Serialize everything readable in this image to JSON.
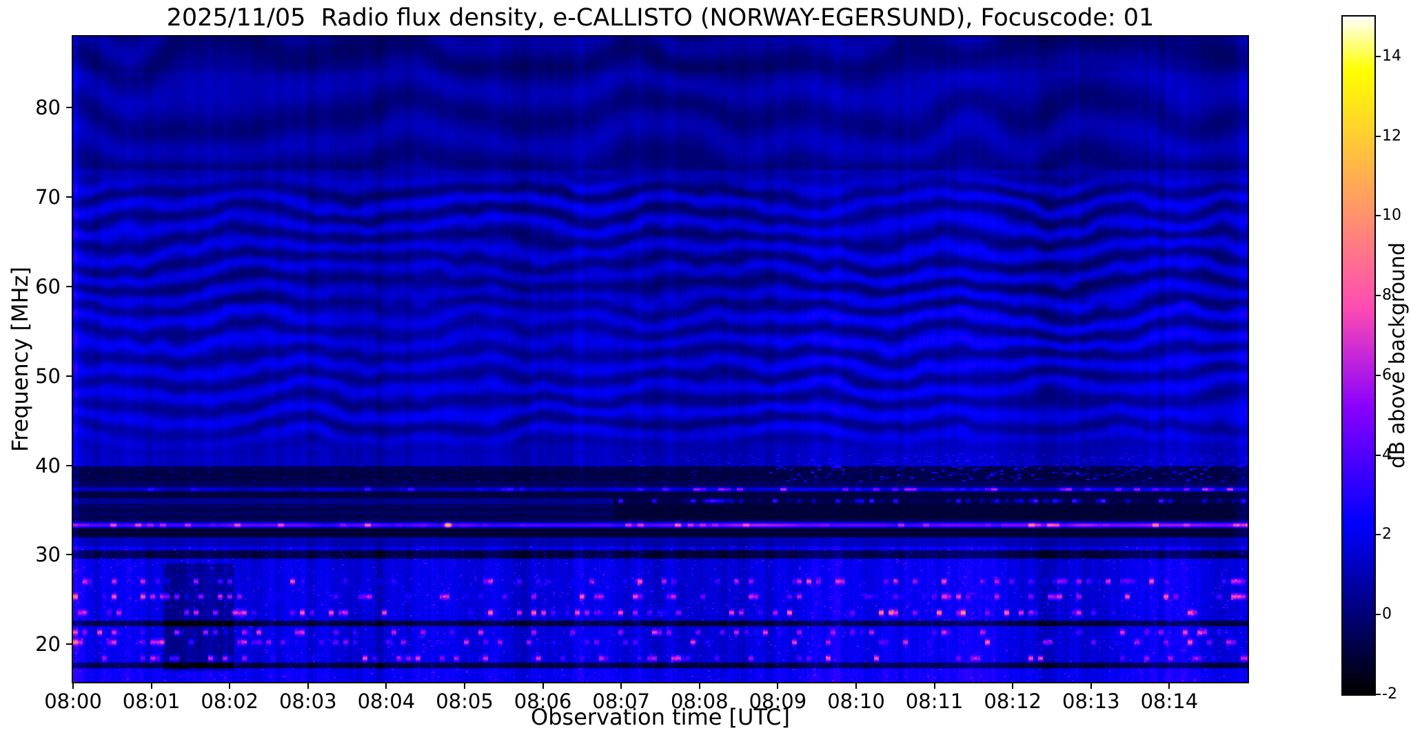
{
  "figure": {
    "title": "2025/11/05  Radio flux density, e-CALLISTO (NORWAY-EGERSUND), Focuscode: 01",
    "xlabel": "Observation time [UTC]",
    "ylabel": "Frequency [MHz]",
    "colorbar_label": "dB above background",
    "background_color": "#ffffff",
    "frame_color": "#000000"
  },
  "chart_data": {
    "type": "heatmap",
    "subtype": "radio-spectrogram",
    "title": "2025/11/05  Radio flux density, e-CALLISTO (NORWAY-EGERSUND), Focuscode: 01",
    "date": "2025/11/05",
    "instrument": "e-CALLISTO",
    "station": "NORWAY-EGERSUND",
    "focuscode": "01",
    "xlabel": "Observation time [UTC]",
    "ylabel": "Frequency [MHz]",
    "x_ticks": [
      "08:00",
      "08:01",
      "08:02",
      "08:03",
      "08:04",
      "08:05",
      "08:06",
      "08:07",
      "08:08",
      "08:09",
      "08:10",
      "08:11",
      "08:12",
      "08:13",
      "08:14"
    ],
    "x_range": [
      "08:00:00",
      "08:15:00"
    ],
    "x_range_minutes": [
      0,
      15
    ],
    "y_ticks": [
      80,
      70,
      60,
      50,
      40,
      30,
      20
    ],
    "y_range_mhz": [
      15.8,
      87.9
    ],
    "grid": false,
    "legend": "colorbar-right",
    "colormap": "gnuplot2",
    "colorbar": {
      "label": "dB above background",
      "ticks": [
        14,
        12,
        10,
        8,
        6,
        4,
        2,
        0,
        -2
      ],
      "range_db": [
        -2,
        15
      ],
      "position": "right"
    },
    "features": {
      "description": "Quiet-Sun spectrogram dominated by wavy interference fringes (40-73 MHz), strong narrowband RFI carriers near 33 and 37 MHz, dark absorption bands between them, and a speckled noisy band below 31 MHz",
      "background_level_db": 0.9,
      "vertical_striping": true,
      "fringe_band": {
        "f_min_mhz": 41.3,
        "f_max_mhz": 73,
        "spacing_mhz": 2.6,
        "amplitude_db": 0.85
      },
      "upper_band": {
        "f_min_mhz": 73,
        "f_max_mhz": 87.9,
        "level_db": 0.55,
        "wavy": true
      },
      "rfi_lines": [
        {
          "freq_mhz": 33.3,
          "width_mhz": 0.5,
          "mean_db": 5.5,
          "peak_db": 12,
          "from_min": 0,
          "to_min": 15,
          "note": "strong continuous carrier, bright bursts 08:08-08:10 and after 08:12"
        },
        {
          "freq_mhz": 37.3,
          "width_mhz": 0.4,
          "mean_db": 3.0,
          "peak_db": 7,
          "from_min": 0,
          "to_min": 15,
          "note": "intermittent carrier, brighter and dashed after 08:07"
        },
        {
          "freq_mhz": 36.0,
          "width_mhz": 0.4,
          "mean_db": 4.0,
          "peak_db": 7,
          "from_min": 6.9,
          "to_min": 15,
          "note": "dashed carrier appearing at 08:07"
        }
      ],
      "dark_bands_mhz": [
        [
          31.95,
          32.95
        ],
        [
          33.95,
          35.6
        ],
        [
          36.35,
          37.0
        ],
        [
          38.2,
          39.9
        ],
        [
          29.55,
          30.45
        ],
        [
          22.0,
          22.6
        ],
        [
          17.3,
          17.9
        ]
      ],
      "low_band": {
        "f_min_mhz": 15.8,
        "f_max_mhz": 30.9,
        "level_db": 1.8,
        "speckle_rows_mhz": [
          27.0,
          25.3,
          23.5,
          21.3,
          20.2,
          18.4
        ],
        "speckle_peak_db": 8
      },
      "quiet_patch": {
        "from_min": 1.15,
        "to_min": 2.05,
        "f_min_mhz": 17,
        "f_max_mhz": 29
      },
      "mode_change_min": 6.9,
      "bright_burst": {
        "time_min": 4.78,
        "freq_mhz": 33.3,
        "peak_db": 12
      }
    }
  }
}
